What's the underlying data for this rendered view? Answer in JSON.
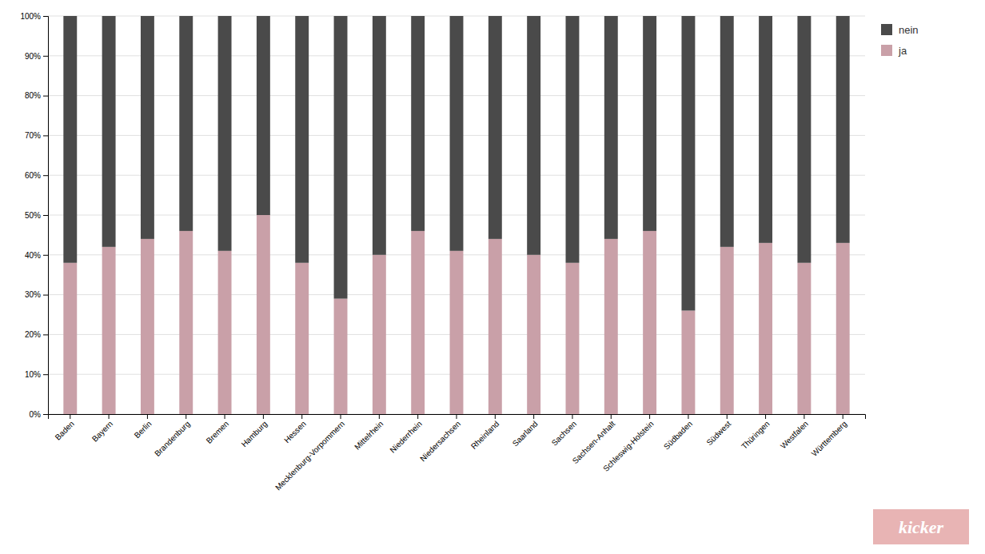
{
  "chart_data": {
    "type": "bar",
    "stacked": true,
    "categories": [
      "Baden",
      "Bayern",
      "Berlin",
      "Brandenburg",
      "Bremen",
      "Hamburg",
      "Hessen",
      "Mecklenburg-Vorpommern",
      "Mittelrhein",
      "Niederrhein",
      "Niedersachsen",
      "Rheinland",
      "Saarland",
      "Sachsen",
      "Sachsen-Anhalt",
      "Schleswig-Holstein",
      "Südbaden",
      "Südwest",
      "Thüringen",
      "Westfalen",
      "Württemberg"
    ],
    "series": [
      {
        "name": "ja",
        "color": "#c9a0a8",
        "values": [
          38,
          42,
          44,
          46,
          41,
          50,
          38,
          29,
          40,
          46,
          41,
          44,
          40,
          38,
          44,
          46,
          26,
          42,
          43,
          38,
          43
        ]
      },
      {
        "name": "nein",
        "color": "#4a4a4a",
        "values": [
          62,
          58,
          56,
          54,
          59,
          50,
          62,
          71,
          60,
          54,
          59,
          56,
          60,
          62,
          56,
          54,
          74,
          58,
          57,
          62,
          57
        ]
      }
    ],
    "ylim": [
      0,
      100
    ],
    "yticks": [
      {
        "value": 0,
        "label": "0%"
      },
      {
        "value": 10,
        "label": "10%"
      },
      {
        "value": 20,
        "label": "20%"
      },
      {
        "value": 30,
        "label": "30%"
      },
      {
        "value": 40,
        "label": "40%"
      },
      {
        "value": 50,
        "label": "50%"
      },
      {
        "value": 60,
        "label": "60%"
      },
      {
        "value": 70,
        "label": "70%"
      },
      {
        "value": 80,
        "label": "80%"
      },
      {
        "value": 90,
        "label": "90%"
      },
      {
        "value": 100,
        "label": "100%"
      }
    ],
    "grid": true,
    "legend": "upper right",
    "annotations": [
      {
        "text": "kicker"
      }
    ]
  }
}
